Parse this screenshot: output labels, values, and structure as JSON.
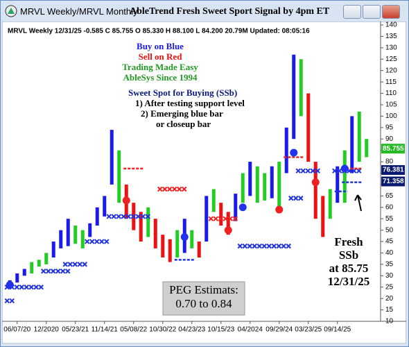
{
  "window": {
    "title_left": "MRVL Weekly/MRVL Monthly",
    "title_main": "AbleTrend Fresh Sweet Sport Signal by 4pm ET"
  },
  "chart_data": {
    "type": "price-bars",
    "info_line": "MRVL  Weekly 12/31/25 -0.585 C 85.755 O 85.330 H 88.100 L 84.200 20.79M Updated: 08:05:16",
    "categories": [
      null,
      "06/07/20",
      null,
      null,
      null,
      "12/2020",
      null,
      null,
      null,
      "05/23/21",
      null,
      null,
      null,
      "11/14/21",
      null,
      null,
      null,
      "05/08/22",
      null,
      null,
      null,
      "10/30/22",
      null,
      null,
      null,
      "04/23/23",
      null,
      null,
      null,
      "10/15/23",
      null,
      null,
      null,
      "04/2024",
      null,
      null,
      null,
      "09/29/24",
      null,
      null,
      null,
      "03/23/25",
      null,
      null,
      null,
      "09/14/25",
      null,
      null,
      null,
      null
    ],
    "high": [
      28,
      31,
      33,
      36,
      37,
      40,
      45,
      50,
      55,
      52,
      50,
      53,
      60,
      65,
      94,
      85,
      70,
      62,
      58,
      60,
      55,
      48,
      46,
      50,
      55,
      50,
      45,
      65,
      68,
      62,
      58,
      66,
      75,
      80,
      78,
      75,
      78,
      80,
      95,
      127,
      125,
      110,
      80,
      65,
      68,
      78,
      85,
      100,
      102,
      90
    ],
    "low": [
      25,
      27,
      30,
      31,
      34,
      35,
      38,
      42,
      43,
      44,
      42,
      47,
      52,
      56,
      70,
      62,
      55,
      50,
      45,
      47,
      42,
      38,
      36,
      38,
      40,
      42,
      38,
      45,
      58,
      52,
      48,
      54,
      62,
      65,
      62,
      63,
      64,
      60,
      75,
      90,
      100,
      80,
      55,
      47,
      55,
      62,
      62,
      75,
      80,
      82
    ],
    "signal": [
      "b",
      "b",
      "b",
      "g",
      "g",
      "g",
      "b",
      "b",
      "b",
      "g",
      "g",
      "b",
      "b",
      "b",
      "b",
      "g",
      "r",
      "r",
      "r",
      "g",
      "r",
      "r",
      "r",
      "g",
      "b",
      "g",
      "r",
      "b",
      "g",
      "r",
      "r",
      "b",
      "g",
      "b",
      "g",
      "g",
      "b",
      "g",
      "b",
      "b",
      "g",
      "r",
      "r",
      "r",
      "g",
      "b",
      "g",
      "b",
      "g",
      "g"
    ],
    "signal_colors": {
      "b": "#1a1aee",
      "g": "#22cc22",
      "r": "#ee1111"
    },
    "ylim": [
      10,
      140
    ],
    "yticks": [
      10,
      15,
      20,
      25,
      30,
      35,
      40,
      45,
      50,
      55,
      60,
      65,
      70,
      75,
      80,
      85,
      90,
      95,
      100,
      105,
      110,
      115,
      120,
      125,
      130,
      135,
      140
    ],
    "x_markers": [
      {
        "from": 0,
        "to": 4,
        "value": 25,
        "color": "#2233dd"
      },
      {
        "from": 0,
        "to": 0,
        "value": 19,
        "color": "#2233dd"
      },
      {
        "from": 5,
        "to": 8,
        "value": 32,
        "color": "#2233dd"
      },
      {
        "from": 8,
        "to": 10,
        "value": 35,
        "color": "#2233dd"
      },
      {
        "from": 11,
        "to": 13,
        "value": 45,
        "color": "#2233dd"
      },
      {
        "from": 14,
        "to": 19,
        "value": 56,
        "color": "#2233dd"
      },
      {
        "from": 21,
        "to": 24,
        "value": 68,
        "color": "#ee2222"
      },
      {
        "from": 28,
        "to": 31,
        "value": 55,
        "color": "#ee2222"
      },
      {
        "from": 32,
        "to": 38,
        "value": 43,
        "color": "#2233dd"
      },
      {
        "from": 39,
        "to": 40,
        "value": 64,
        "color": "#2233dd"
      },
      {
        "from": 40,
        "to": 42,
        "value": 76,
        "color": "#2233dd"
      },
      {
        "from": 45,
        "to": 48,
        "value": 76,
        "color": "#2233dd"
      }
    ],
    "dashes": [
      {
        "from": 16,
        "to": 18,
        "value": 77,
        "color": "#ee2222"
      },
      {
        "from": 23,
        "to": 25,
        "value": 37,
        "color": "#2233dd"
      },
      {
        "from": 38,
        "to": 40,
        "value": 82,
        "color": "#ee2222"
      },
      {
        "from": 46,
        "to": 48,
        "value": 77,
        "color": "#ee2222"
      },
      {
        "from": 46,
        "to": 48,
        "value": 71,
        "color": "#2233dd"
      },
      {
        "from": 45,
        "to": 46,
        "value": 67,
        "color": "#2233dd"
      }
    ],
    "dots": [
      {
        "x": 0,
        "value": 26,
        "color": "#2233ee"
      },
      {
        "x": 16,
        "value": 63,
        "color": "#ee2222"
      },
      {
        "x": 24,
        "value": 47,
        "color": "#2233ee"
      },
      {
        "x": 30,
        "value": 50,
        "color": "#ee2222"
      },
      {
        "x": 32,
        "value": 60,
        "color": "#2233ee"
      },
      {
        "x": 37,
        "value": 59,
        "color": "#ee2222"
      },
      {
        "x": 39,
        "value": 84,
        "color": "#2233ee"
      },
      {
        "x": 42,
        "value": 71,
        "color": "#ee2222"
      },
      {
        "x": 46,
        "value": 77,
        "color": "#2233ee"
      }
    ],
    "price_labels": [
      {
        "value": 85.755,
        "color": "#22bb22"
      },
      {
        "value": 76.381,
        "color": "#0a1a6e"
      },
      {
        "value": 71.358,
        "color": "#0a1a6e"
      }
    ],
    "legend_lines": [
      {
        "text": "Buy on Blue",
        "color": "#1a1aee"
      },
      {
        "text": "Sell on Red",
        "color": "#ee1111"
      },
      {
        "text": "Trading Made Easy",
        "color": "#229922"
      },
      {
        "text": "AbleSys Since 1994",
        "color": "#229922"
      }
    ],
    "ssb_title": "Sweet Spot for Buying (SSb)",
    "ssb_lines": [
      "1) After testing support level",
      "2) Emerging blue bar",
      "or closeup bar"
    ],
    "fresh_lines": [
      "Fresh",
      "SSb",
      "at 85.75",
      "12/31/25"
    ],
    "peg_lines": [
      "PEG Estimats:",
      "0.70 to 0.84"
    ]
  }
}
